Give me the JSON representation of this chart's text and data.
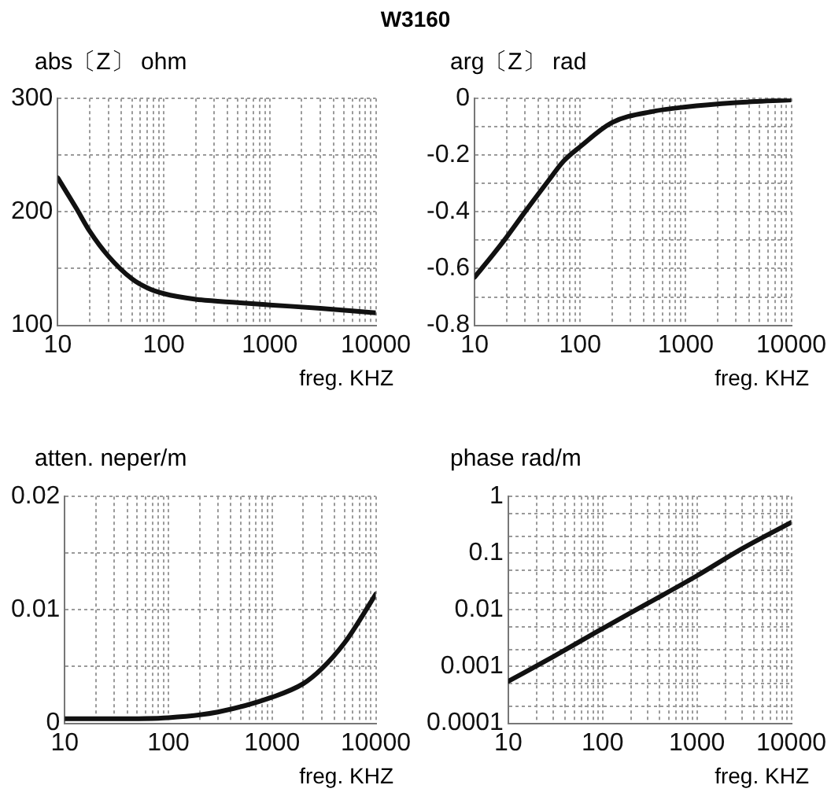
{
  "chart_data": [
    {
      "type": "line",
      "title": "W3160",
      "ylabel": "abs〔Z〕 ohm",
      "xlabel": "freg. KHZ",
      "log": "x",
      "grid": true,
      "marker": "none",
      "x": [
        10,
        15,
        20,
        30,
        50,
        70,
        100,
        200,
        500,
        1000,
        3000,
        10000
      ],
      "series": [
        {
          "color": "#111111",
          "values": [
            230,
            203,
            183,
            161,
            141,
            133,
            128,
            123,
            120,
            118,
            115,
            111
          ]
        }
      ],
      "xlim": [
        10,
        10000
      ],
      "ylim": [
        100,
        300
      ],
      "xticks": [
        10,
        {
          "value": 20,
          "label": null
        },
        {
          "value": 30,
          "label": null
        },
        {
          "value": 40,
          "label": null
        },
        {
          "value": 50,
          "label": null
        },
        {
          "value": 60,
          "label": null
        },
        {
          "value": 70,
          "label": null
        },
        {
          "value": 80,
          "label": null
        },
        {
          "value": 90,
          "label": null
        },
        100,
        {
          "value": 200,
          "label": null
        },
        {
          "value": 300,
          "label": null
        },
        {
          "value": 400,
          "label": null
        },
        {
          "value": 500,
          "label": null
        },
        {
          "value": 600,
          "label": null
        },
        {
          "value": 700,
          "label": null
        },
        {
          "value": 800,
          "label": null
        },
        {
          "value": 900,
          "label": null
        },
        1000,
        {
          "value": 2000,
          "label": null
        },
        {
          "value": 3000,
          "label": null
        },
        {
          "value": 4000,
          "label": null
        },
        {
          "value": 5000,
          "label": null
        },
        {
          "value": 6000,
          "label": null
        },
        {
          "value": 7000,
          "label": null
        },
        {
          "value": 8000,
          "label": null
        },
        {
          "value": 9000,
          "label": null
        },
        10000
      ],
      "yticks": [
        100,
        {
          "value": 150,
          "label": null
        },
        200,
        {
          "value": 250,
          "label": null
        },
        300
      ]
    },
    {
      "type": "line",
      "ylabel": "arg〔Z〕 rad",
      "xlabel": "freg. KHZ",
      "log": "x",
      "grid": true,
      "marker": "none",
      "x": [
        10,
        15,
        20,
        30,
        50,
        70,
        100,
        200,
        500,
        1000,
        3000,
        10000
      ],
      "series": [
        {
          "color": "#111111",
          "values": [
            -0.63,
            -0.55,
            -0.49,
            -0.4,
            -0.29,
            -0.22,
            -0.17,
            -0.085,
            -0.045,
            -0.03,
            -0.015,
            -0.005
          ]
        }
      ],
      "xlim": [
        10,
        10000
      ],
      "ylim": [
        -0.8,
        0
      ],
      "xticks": [
        10,
        {
          "value": 20,
          "label": null
        },
        {
          "value": 30,
          "label": null
        },
        {
          "value": 40,
          "label": null
        },
        {
          "value": 50,
          "label": null
        },
        {
          "value": 60,
          "label": null
        },
        {
          "value": 70,
          "label": null
        },
        {
          "value": 80,
          "label": null
        },
        {
          "value": 90,
          "label": null
        },
        100,
        {
          "value": 200,
          "label": null
        },
        {
          "value": 300,
          "label": null
        },
        {
          "value": 400,
          "label": null
        },
        {
          "value": 500,
          "label": null
        },
        {
          "value": 600,
          "label": null
        },
        {
          "value": 700,
          "label": null
        },
        {
          "value": 800,
          "label": null
        },
        {
          "value": 900,
          "label": null
        },
        1000,
        {
          "value": 2000,
          "label": null
        },
        {
          "value": 3000,
          "label": null
        },
        {
          "value": 4000,
          "label": null
        },
        {
          "value": 5000,
          "label": null
        },
        {
          "value": 6000,
          "label": null
        },
        {
          "value": 7000,
          "label": null
        },
        {
          "value": 8000,
          "label": null
        },
        {
          "value": 9000,
          "label": null
        },
        10000
      ],
      "yticks": [
        -0.8,
        {
          "value": -0.7,
          "label": null
        },
        -0.6,
        {
          "value": -0.5,
          "label": null
        },
        -0.4,
        {
          "value": -0.3,
          "label": null
        },
        -0.2,
        {
          "value": -0.1,
          "label": null
        },
        0
      ]
    },
    {
      "type": "line",
      "ylabel": "atten. neper/m",
      "xlabel": "freg. KHZ",
      "log": "x",
      "grid": true,
      "marker": "none",
      "x": [
        10,
        30,
        100,
        300,
        1000,
        2000,
        3000,
        5000,
        7000,
        10000
      ],
      "series": [
        {
          "color": "#111111",
          "values": [
            0.0004,
            0.0004,
            0.0005,
            0.001,
            0.0023,
            0.0035,
            0.0048,
            0.0071,
            0.0091,
            0.0114
          ]
        }
      ],
      "xlim": [
        10,
        10000
      ],
      "ylim": [
        0,
        0.02
      ],
      "xticks": [
        10,
        {
          "value": 20,
          "label": null
        },
        {
          "value": 30,
          "label": null
        },
        {
          "value": 40,
          "label": null
        },
        {
          "value": 50,
          "label": null
        },
        {
          "value": 60,
          "label": null
        },
        {
          "value": 70,
          "label": null
        },
        {
          "value": 80,
          "label": null
        },
        {
          "value": 90,
          "label": null
        },
        100,
        {
          "value": 200,
          "label": null
        },
        {
          "value": 300,
          "label": null
        },
        {
          "value": 400,
          "label": null
        },
        {
          "value": 500,
          "label": null
        },
        {
          "value": 600,
          "label": null
        },
        {
          "value": 700,
          "label": null
        },
        {
          "value": 800,
          "label": null
        },
        {
          "value": 900,
          "label": null
        },
        1000,
        {
          "value": 2000,
          "label": null
        },
        {
          "value": 3000,
          "label": null
        },
        {
          "value": 4000,
          "label": null
        },
        {
          "value": 5000,
          "label": null
        },
        {
          "value": 6000,
          "label": null
        },
        {
          "value": 7000,
          "label": null
        },
        {
          "value": 8000,
          "label": null
        },
        {
          "value": 9000,
          "label": null
        },
        10000
      ],
      "yticks": [
        0,
        {
          "value": 0.005,
          "label": null
        },
        0.01,
        {
          "value": 0.015,
          "label": null
        },
        0.02
      ]
    },
    {
      "type": "line",
      "ylabel": "phase rad/m",
      "xlabel": "freg. KHZ",
      "log": "xy",
      "grid": true,
      "marker": "none",
      "x": [
        10,
        30,
        100,
        300,
        1000,
        3000,
        10000
      ],
      "series": [
        {
          "color": "#111111",
          "values": [
            0.00055,
            0.0015,
            0.0047,
            0.013,
            0.04,
            0.12,
            0.35
          ]
        }
      ],
      "xlim": [
        10,
        10000
      ],
      "ylim": [
        0.0001,
        1
      ],
      "xticks": [
        10,
        {
          "value": 20,
          "label": null
        },
        {
          "value": 30,
          "label": null
        },
        {
          "value": 40,
          "label": null
        },
        {
          "value": 50,
          "label": null
        },
        {
          "value": 60,
          "label": null
        },
        {
          "value": 70,
          "label": null
        },
        {
          "value": 80,
          "label": null
        },
        {
          "value": 90,
          "label": null
        },
        100,
        {
          "value": 200,
          "label": null
        },
        {
          "value": 300,
          "label": null
        },
        {
          "value": 400,
          "label": null
        },
        {
          "value": 500,
          "label": null
        },
        {
          "value": 600,
          "label": null
        },
        {
          "value": 700,
          "label": null
        },
        {
          "value": 800,
          "label": null
        },
        {
          "value": 900,
          "label": null
        },
        1000,
        {
          "value": 2000,
          "label": null
        },
        {
          "value": 3000,
          "label": null
        },
        {
          "value": 4000,
          "label": null
        },
        {
          "value": 5000,
          "label": null
        },
        {
          "value": 6000,
          "label": null
        },
        {
          "value": 7000,
          "label": null
        },
        {
          "value": 8000,
          "label": null
        },
        {
          "value": 9000,
          "label": null
        },
        10000
      ],
      "yticks": [
        0.0001,
        {
          "value": 0.0002,
          "label": null
        },
        {
          "value": 0.0005,
          "label": null
        },
        0.001,
        {
          "value": 0.002,
          "label": null
        },
        {
          "value": 0.005,
          "label": null
        },
        0.01,
        {
          "value": 0.02,
          "label": null
        },
        {
          "value": 0.05,
          "label": null
        },
        0.1,
        {
          "value": 0.2,
          "label": null
        },
        {
          "value": 0.5,
          "label": null
        },
        1
      ]
    }
  ]
}
